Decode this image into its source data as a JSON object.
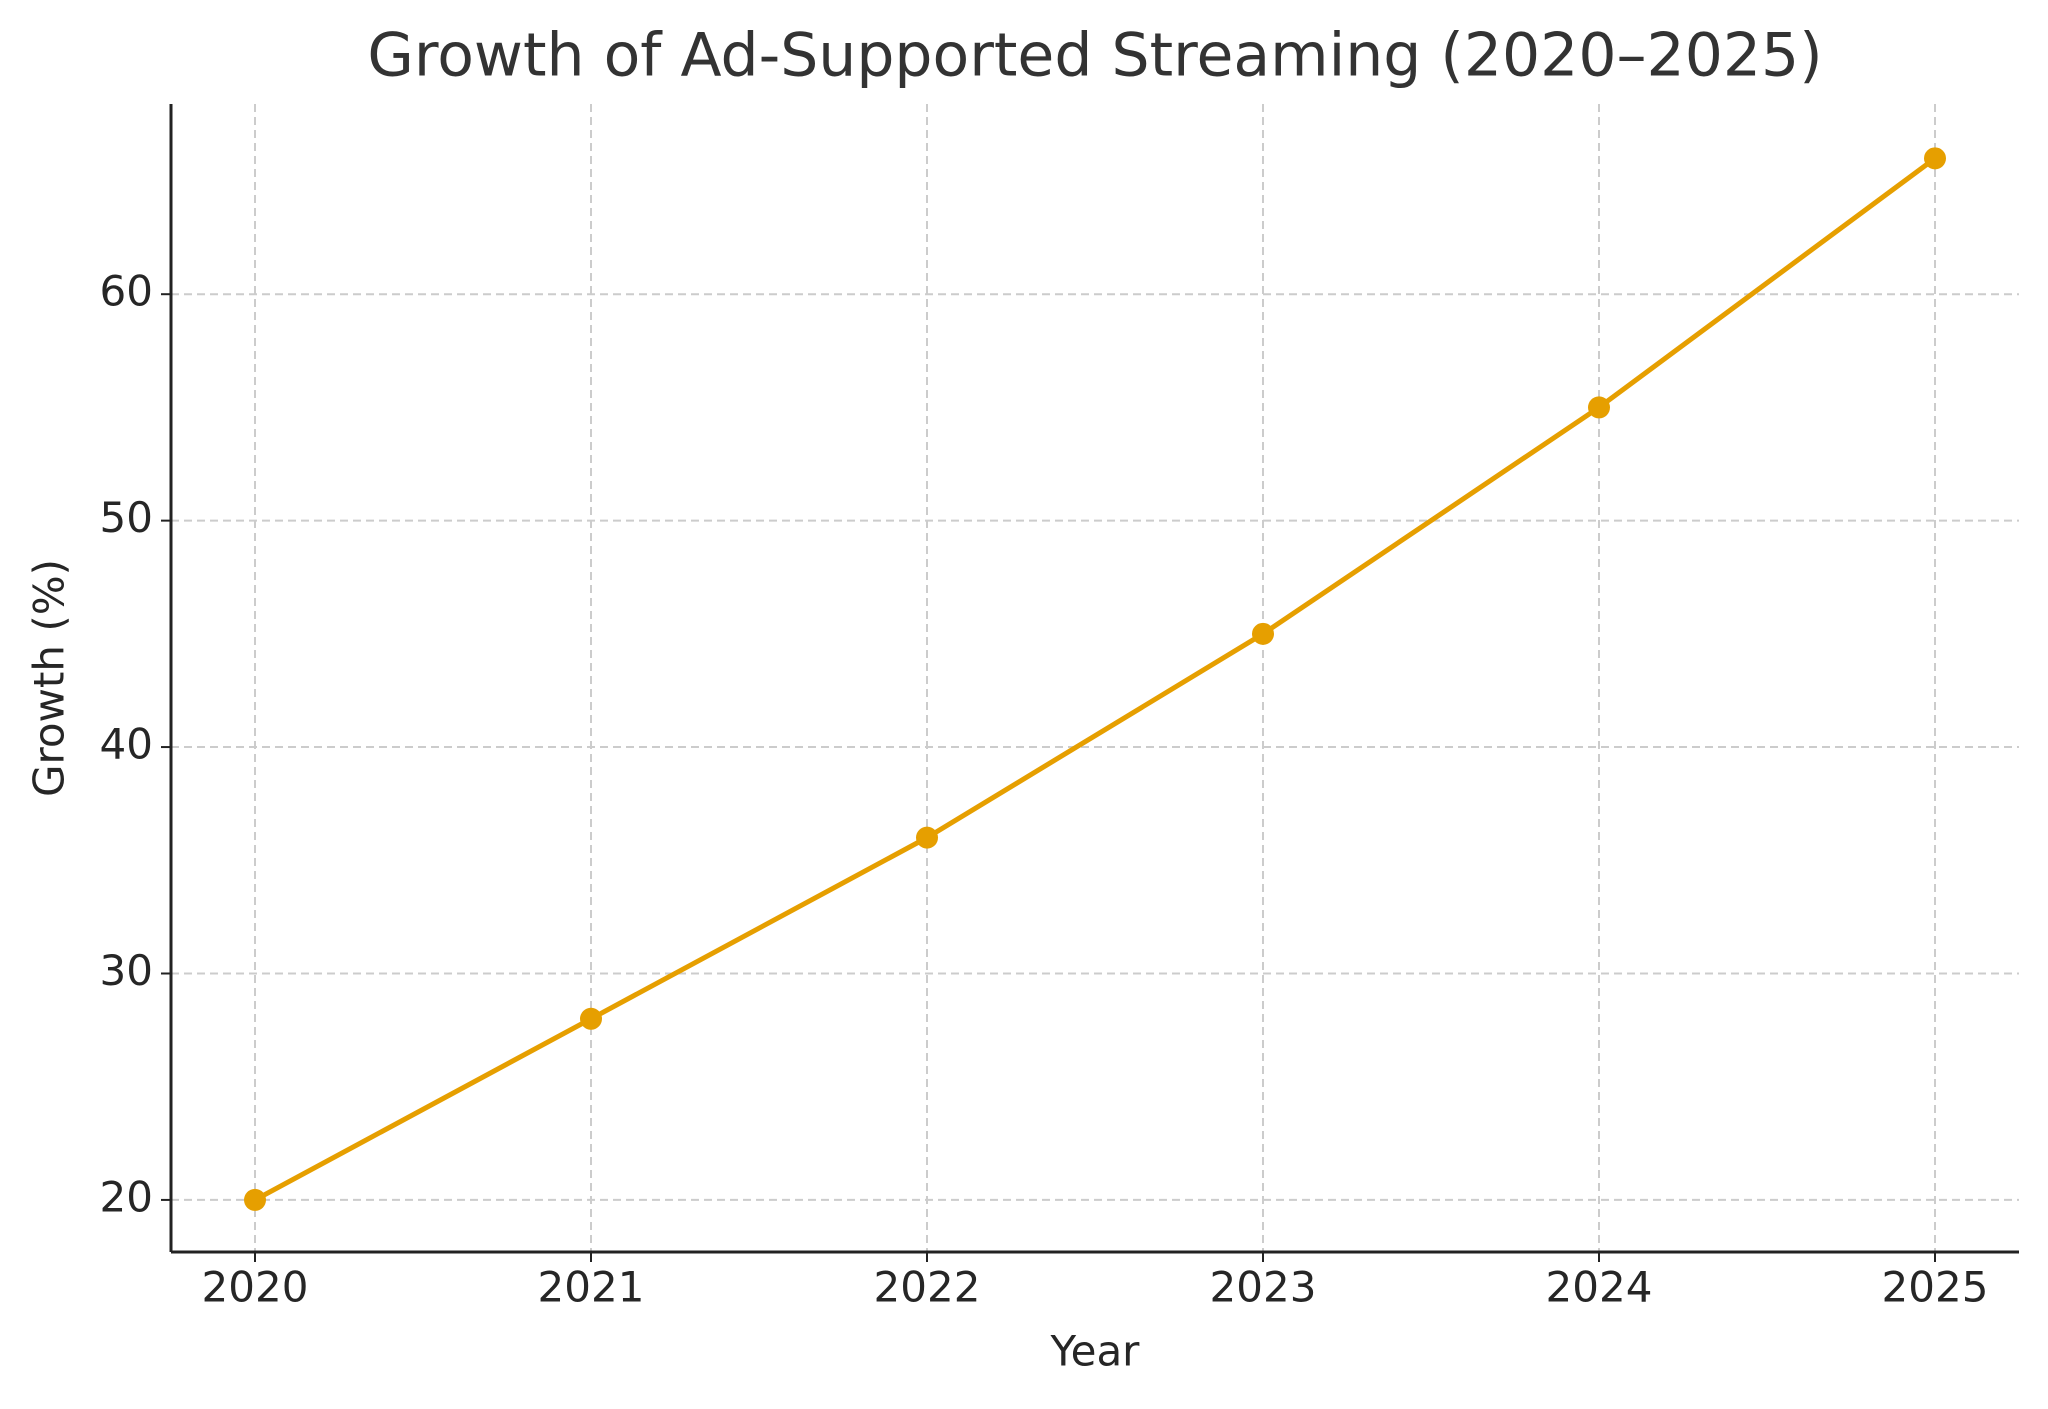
{
  "chart_data": {
    "type": "line",
    "title": "Growth of Ad-Supported Streaming (2020–2025)",
    "x_label": "Year",
    "y_label": "Growth (%)",
    "x": [
      2020,
      2021,
      2022,
      2023,
      2024,
      2025
    ],
    "series": [
      {
        "name": "Growth",
        "color": "#E69F00",
        "values": [
          20,
          28,
          36,
          45,
          55,
          66
        ]
      }
    ],
    "xlim": [
      2019.75,
      2025.25
    ],
    "xticks": [
      2020,
      2021,
      2022,
      2023,
      2024,
      2025
    ],
    "ylim": [
      17.7,
      68.4
    ],
    "yticks": [
      20,
      30,
      40,
      50,
      60
    ],
    "grid": true,
    "markers": true
  }
}
